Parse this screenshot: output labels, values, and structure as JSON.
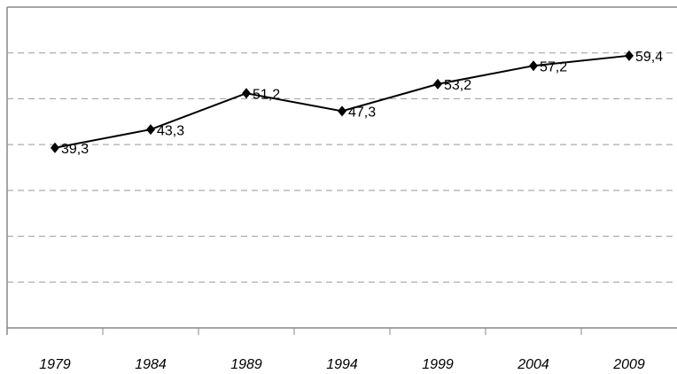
{
  "chart_data": {
    "type": "line",
    "categories": [
      "1979",
      "1984",
      "1989",
      "1994",
      "1999",
      "2004",
      "2009"
    ],
    "series": [
      {
        "color": "#000000",
        "values": [
          39.3,
          43.3,
          51.2,
          47.3,
          53.2,
          57.2,
          59.4
        ],
        "value_labels": [
          "39,3",
          "43,3",
          "51,2",
          "47,3",
          "53,2",
          "57,2",
          "59,4"
        ]
      }
    ],
    "ylim": [
      0,
      70
    ],
    "yticks": [
      0,
      10,
      20,
      30,
      40,
      50,
      60
    ],
    "grid": true
  }
}
